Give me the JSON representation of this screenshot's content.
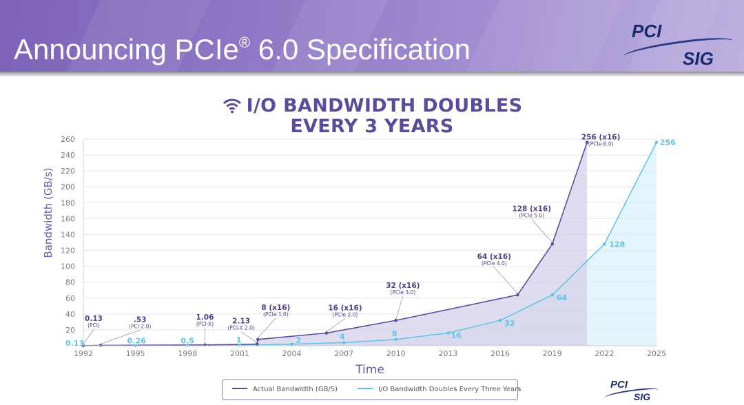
{
  "slide": {
    "title": "Announcing PCIe",
    "title_sup": "®",
    "title_rest": " 6.0 Specification"
  },
  "logo": {
    "top": "PCI",
    "bottom": "SIG"
  },
  "chart_data": {
    "type": "line",
    "title_line1": "I/O BANDWIDTH DOUBLES",
    "title_line2": "EVERY 3 YEARS",
    "title_icon": "wifi-signal-icon",
    "xlabel": "Time",
    "ylabel": "Bandwidth (GB/s)",
    "xlim": [
      1992,
      2025
    ],
    "ylim": [
      0,
      260
    ],
    "xticks": [
      "1992",
      "1995",
      "1998",
      "2001",
      "2004",
      "2007",
      "2010",
      "2013",
      "2016",
      "2019",
      "2022",
      "2025"
    ],
    "yticks": [
      "20",
      "40",
      "60",
      "80",
      "100",
      "120",
      "140",
      "160",
      "180",
      "200",
      "220",
      "240",
      "260"
    ],
    "grid": true,
    "legend_position": "bottom",
    "colors": {
      "actual": "#5b4b9b",
      "doubling": "#5cc4e6",
      "title": "#5a4b9b"
    },
    "series": [
      {
        "name": "Actual Bandwidth (GB/S)",
        "points": [
          {
            "x": 1992,
            "y": 0.13,
            "label": "0.13",
            "sub": "(PCI)"
          },
          {
            "x": 1993,
            "y": 0.53,
            "label": ".53",
            "sub": "(PCI 2.0)"
          },
          {
            "x": 1999,
            "y": 1.06,
            "label": "1.06",
            "sub": "(PCI-X)"
          },
          {
            "x": 2002,
            "y": 2.13,
            "label": "2.13",
            "sub": "(PCI-X 2.0)"
          },
          {
            "x": 2002.05,
            "y": 8,
            "label": "8 (x16)",
            "sub": "(PCIe 1.0)"
          },
          {
            "x": 2006,
            "y": 16,
            "label": "16 (x16)",
            "sub": "(PCIe 2.0)"
          },
          {
            "x": 2010,
            "y": 32,
            "label": "32 (x16)",
            "sub": "(PCIe 3.0)"
          },
          {
            "x": 2017,
            "y": 64,
            "label": "64 (x16)",
            "sub": "(PCIe 4.0)"
          },
          {
            "x": 2019,
            "y": 128,
            "label": "128 (x16)",
            "sub": "(PCIe 5.0)"
          },
          {
            "x": 2021,
            "y": 256,
            "label": "256 (x16)",
            "sub": "(PCIe 6.0)"
          }
        ]
      },
      {
        "name": "I/O Bandwidth Doubles Every Three Years",
        "points": [
          {
            "x": 1992,
            "y": 0.13,
            "label": "0.13"
          },
          {
            "x": 1995,
            "y": 0.26,
            "label": "0.26"
          },
          {
            "x": 1998,
            "y": 0.5,
            "label": "0.5"
          },
          {
            "x": 2001,
            "y": 1,
            "label": "1"
          },
          {
            "x": 2004,
            "y": 2,
            "label": "2"
          },
          {
            "x": 2007,
            "y": 4,
            "label": "4"
          },
          {
            "x": 2010,
            "y": 8,
            "label": "8"
          },
          {
            "x": 2013,
            "y": 16,
            "label": "16"
          },
          {
            "x": 2016,
            "y": 32,
            "label": "32"
          },
          {
            "x": 2019,
            "y": 64,
            "label": "64"
          },
          {
            "x": 2022,
            "y": 128,
            "label": "128"
          },
          {
            "x": 2025,
            "y": 256,
            "label": "256"
          }
        ]
      }
    ]
  }
}
